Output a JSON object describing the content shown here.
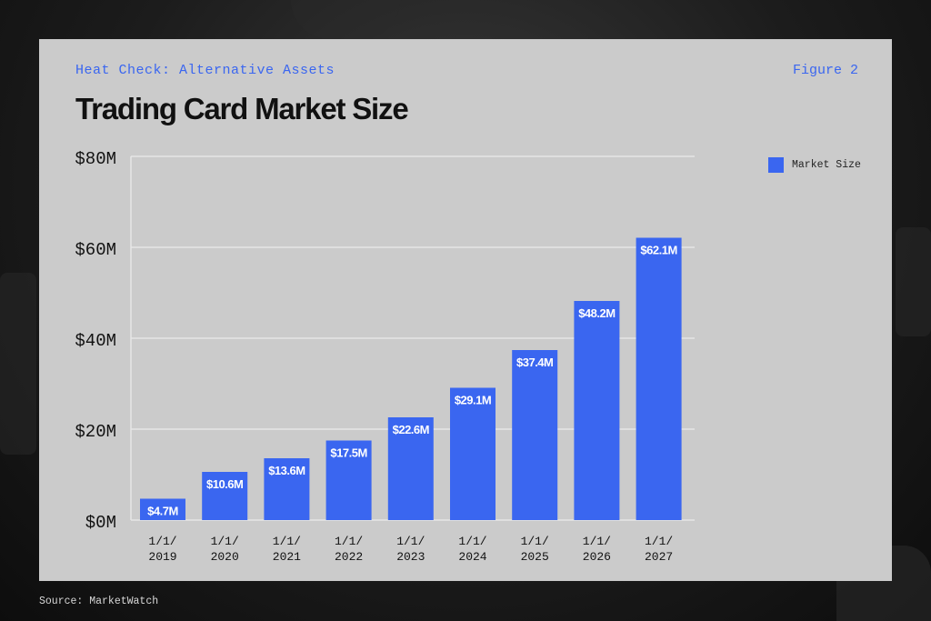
{
  "header": {
    "kicker": "Heat Check: Alternative Assets",
    "figure": "Figure 2"
  },
  "footer": {
    "source": "Source: MarketWatch"
  },
  "colors": {
    "bar": "#3a66f0",
    "card": "#cbcbcb",
    "grid": "#e6e6e6"
  },
  "chart_data": {
    "type": "bar",
    "title": "Trading Card Market Size",
    "categories": [
      [
        "1/1/",
        "2019"
      ],
      [
        "1/1/",
        "2020"
      ],
      [
        "1/1/",
        "2021"
      ],
      [
        "1/1/",
        "2022"
      ],
      [
        "1/1/",
        "2023"
      ],
      [
        "1/1/",
        "2024"
      ],
      [
        "1/1/",
        "2025"
      ],
      [
        "1/1/",
        "2026"
      ],
      [
        "1/1/",
        "2027"
      ]
    ],
    "series": [
      {
        "name": "Market Size",
        "values": [
          4.7,
          10.6,
          13.6,
          17.5,
          22.6,
          29.1,
          37.4,
          48.2,
          62.1
        ],
        "labels": [
          "$4.7M",
          "$10.6M",
          "$13.6M",
          "$17.5M",
          "$22.6M",
          "$29.1M",
          "$37.4M",
          "$48.2M",
          "$62.1M"
        ]
      }
    ],
    "ylim": [
      0,
      80
    ],
    "yticks": [
      0,
      20,
      40,
      60,
      80
    ],
    "ytick_labels": [
      "$0M",
      "$20M",
      "$40M",
      "$60M",
      "$80M"
    ],
    "xlabel": "",
    "ylabel": "",
    "grid": true,
    "legend_position": "top-right"
  }
}
